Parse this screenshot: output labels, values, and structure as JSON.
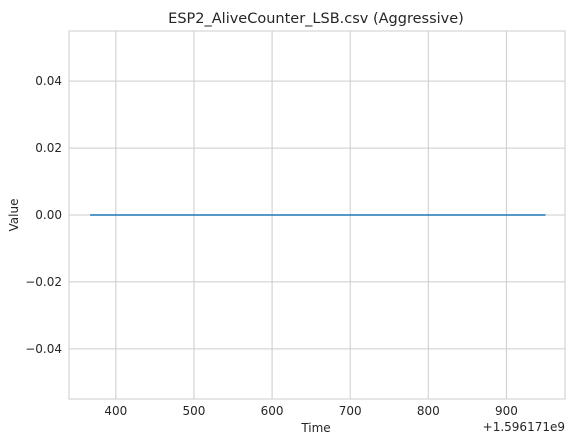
{
  "chart_data": {
    "type": "line",
    "title": "ESP2_AliveCounter_LSB.csv (Aggressive)",
    "xlabel": "Time",
    "ylabel": "Value",
    "x_offset_label": "+1.596171e9",
    "xlim": [
      340,
      975
    ],
    "ylim": [
      -0.055,
      0.055
    ],
    "x_ticks": [
      400,
      500,
      600,
      700,
      800,
      900
    ],
    "x_tick_labels": [
      "400",
      "500",
      "600",
      "700",
      "800",
      "900"
    ],
    "y_ticks": [
      -0.04,
      -0.02,
      0.0,
      0.02,
      0.04
    ],
    "y_tick_labels": [
      "−0.04",
      "−0.02",
      "0.00",
      "0.02",
      "0.04"
    ],
    "grid": true,
    "series": [
      {
        "color": "#1f77b4",
        "x": [
          367,
          950
        ],
        "y": [
          0,
          0
        ]
      }
    ]
  }
}
